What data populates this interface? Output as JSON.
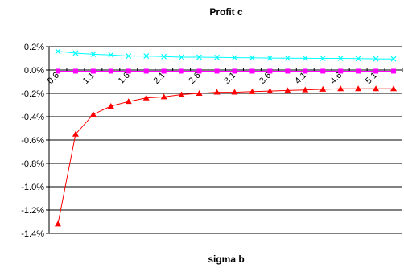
{
  "chart_data": {
    "type": "line",
    "title": "Profit c",
    "xlabel": "sigma b",
    "ylabel": "",
    "x": [
      0.6,
      0.85,
      1.1,
      1.35,
      1.6,
      1.85,
      2.1,
      2.35,
      2.6,
      2.85,
      3.1,
      3.35,
      3.6,
      3.85,
      4.1,
      4.35,
      4.6,
      4.85,
      5.1,
      5.35
    ],
    "x_tick_labels": [
      "0.6",
      "1.1",
      "1.6",
      "2.1",
      "2.6",
      "3.1",
      "3.6",
      "4.1",
      "4.6",
      "5.1"
    ],
    "ylim": [
      -1.4,
      0.2
    ],
    "y_ticks": [
      0.2,
      0.0,
      -0.2,
      -0.4,
      -0.6,
      -0.8,
      -1.0,
      -1.2,
      -1.4
    ],
    "y_tick_labels": [
      "0.2%",
      "0.0%",
      "-0.2%",
      "-0.4%",
      "-0.6%",
      "-0.8%",
      "-1.0%",
      "-1.2%",
      "-1.4%"
    ],
    "grid": true,
    "legend": "none",
    "series": [
      {
        "color": "#FF00FF",
        "marker": "square",
        "values": [
          -0.01,
          -0.01,
          -0.01,
          -0.01,
          -0.01,
          -0.01,
          -0.01,
          -0.01,
          -0.01,
          -0.01,
          -0.01,
          -0.01,
          -0.01,
          -0.01,
          -0.01,
          -0.01,
          -0.01,
          -0.01,
          -0.01,
          -0.01
        ]
      },
      {
        "color": "#00FFFF",
        "marker": "x",
        "values": [
          0.16,
          0.145,
          0.135,
          0.13,
          0.12,
          0.12,
          0.115,
          0.11,
          0.11,
          0.108,
          0.106,
          0.105,
          0.103,
          0.102,
          0.101,
          0.1,
          0.1,
          0.098,
          0.096,
          0.095
        ]
      },
      {
        "color": "#FF0000",
        "marker": "triangle",
        "values": [
          -1.32,
          -0.55,
          -0.38,
          -0.31,
          -0.27,
          -0.24,
          -0.23,
          -0.21,
          -0.2,
          -0.19,
          -0.19,
          -0.185,
          -0.18,
          -0.175,
          -0.17,
          -0.165,
          -0.16,
          -0.16,
          -0.16,
          -0.16
        ]
      }
    ]
  }
}
